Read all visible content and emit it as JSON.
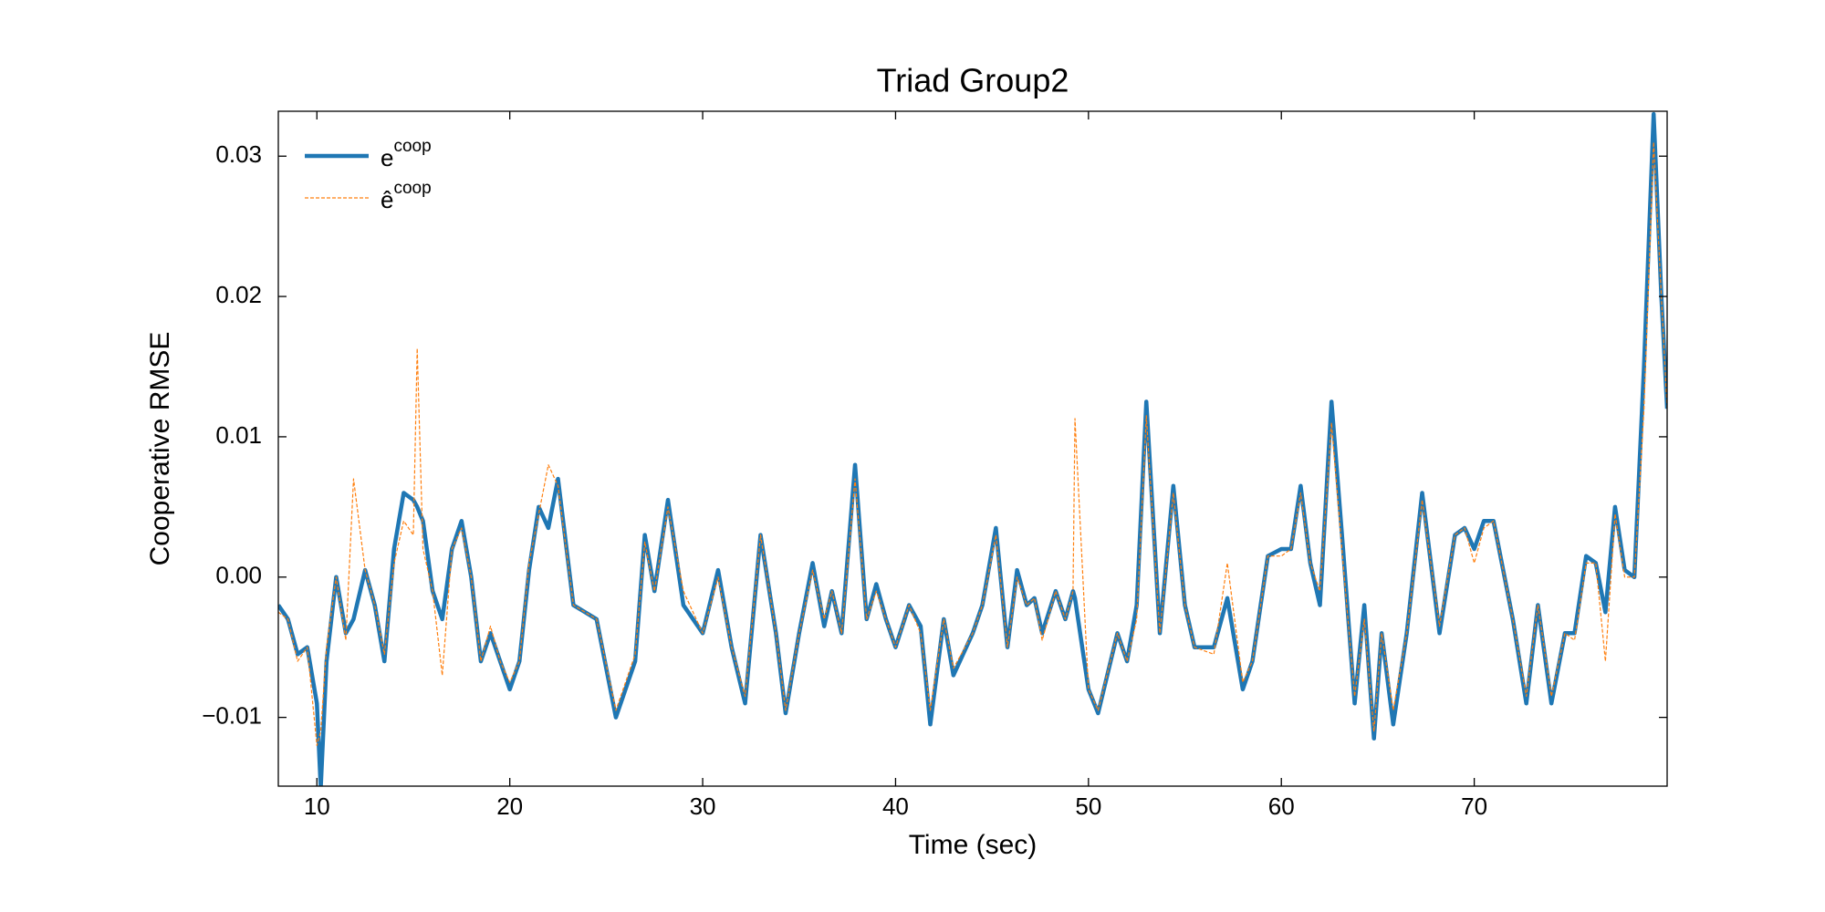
{
  "chart_data": {
    "type": "line",
    "title": "Triad Group2",
    "xlabel": "Time (sec)",
    "ylabel": "Cooperative RMSE",
    "x": [
      8,
      8.5,
      9,
      9.5,
      10,
      10.2,
      10.5,
      11,
      11.5,
      11.9,
      12.5,
      13,
      13.5,
      14,
      14.5,
      15,
      15.2,
      15.5,
      16,
      16.5,
      17,
      17.5,
      18,
      18.5,
      19,
      19.5,
      20,
      20.5,
      21,
      21.5,
      22,
      22.5,
      23.3,
      24.5,
      25.5,
      26.5,
      27,
      27.5,
      28.2,
      29,
      30,
      30.8,
      31.5,
      32.2,
      33,
      33.8,
      34.3,
      35,
      35.7,
      36.3,
      36.7,
      37.2,
      37.9,
      38.5,
      39,
      39.5,
      40,
      40.7,
      41.3,
      41.8,
      42.5,
      43,
      44,
      44.5,
      45.2,
      45.8,
      46.3,
      46.8,
      47.2,
      47.6,
      48.3,
      48.8,
      49.2,
      49.3,
      50,
      50.5,
      51.5,
      52,
      52.5,
      53,
      53.7,
      54.4,
      55,
      55.5,
      56.5,
      57.2,
      58,
      58.5,
      59.3,
      60,
      60.5,
      61,
      61.5,
      62,
      62.6,
      63.2,
      63.8,
      64.3,
      64.8,
      65.2,
      65.8,
      66.5,
      67.3,
      68.2,
      69,
      69.5,
      70,
      70.5,
      71,
      72,
      72.7,
      73.3,
      74,
      74.7,
      75.2,
      75.8,
      76.3,
      76.8,
      77.3,
      77.8,
      78.3,
      78.8,
      79.3,
      79.7,
      80
    ],
    "series": [
      {
        "name": "ecoop",
        "color": "#1f77b4",
        "values": [
          -0.002,
          -0.003,
          -0.0055,
          -0.005,
          -0.009,
          -0.015,
          -0.006,
          0.0,
          -0.004,
          -0.003,
          0.0005,
          -0.002,
          -0.006,
          0.002,
          0.006,
          0.0055,
          0.005,
          0.004,
          -0.001,
          -0.003,
          0.002,
          0.004,
          0.0,
          -0.006,
          -0.004,
          -0.006,
          -0.008,
          -0.006,
          0.0005,
          0.005,
          0.0035,
          0.007,
          -0.002,
          -0.003,
          -0.01,
          -0.006,
          0.003,
          -0.001,
          0.0055,
          -0.002,
          -0.004,
          0.0005,
          -0.005,
          -0.009,
          0.003,
          -0.004,
          -0.0097,
          -0.004,
          0.001,
          -0.0035,
          -0.001,
          -0.004,
          0.008,
          -0.003,
          -0.0005,
          -0.003,
          -0.005,
          -0.002,
          -0.0035,
          -0.0105,
          -0.003,
          -0.007,
          -0.004,
          -0.002,
          0.0035,
          -0.005,
          0.0005,
          -0.002,
          -0.0015,
          -0.004,
          -0.001,
          -0.003,
          -0.001,
          -0.0015,
          -0.008,
          -0.0097,
          -0.004,
          -0.006,
          -0.002,
          0.0125,
          -0.004,
          0.0065,
          -0.002,
          -0.005,
          -0.005,
          -0.0015,
          -0.008,
          -0.006,
          0.0015,
          0.002,
          0.002,
          0.0065,
          0.001,
          -0.002,
          0.0125,
          0.002,
          -0.009,
          -0.002,
          -0.0115,
          -0.004,
          -0.0105,
          -0.004,
          0.006,
          -0.004,
          0.003,
          0.0035,
          0.002,
          0.004,
          0.004,
          -0.003,
          -0.009,
          -0.002,
          -0.009,
          -0.004,
          -0.004,
          0.0015,
          0.001,
          -0.0025,
          0.005,
          0.0005,
          0.0,
          0.015,
          0.033,
          0.02,
          0.012
        ]
      },
      {
        "name": "êcoop",
        "color": "#ff7f0e",
        "values": [
          -0.0025,
          -0.003,
          -0.006,
          -0.005,
          -0.012,
          -0.011,
          -0.005,
          0.0,
          -0.0045,
          0.007,
          0.0005,
          -0.002,
          -0.0055,
          0.001,
          0.004,
          0.003,
          0.0163,
          0.002,
          -0.001,
          -0.007,
          0.002,
          0.0035,
          0.0,
          -0.006,
          -0.0035,
          -0.006,
          -0.0075,
          -0.006,
          0.001,
          0.0045,
          0.008,
          0.0065,
          -0.002,
          -0.003,
          -0.0095,
          -0.0055,
          0.0025,
          -0.001,
          0.005,
          -0.001,
          -0.004,
          0.0,
          -0.005,
          -0.0085,
          0.003,
          -0.004,
          -0.0095,
          -0.004,
          0.0005,
          -0.003,
          -0.001,
          -0.004,
          0.007,
          -0.003,
          -0.001,
          -0.003,
          -0.005,
          -0.002,
          -0.004,
          -0.0095,
          -0.003,
          -0.0065,
          -0.004,
          -0.002,
          0.003,
          -0.005,
          0.0,
          -0.002,
          -0.0015,
          -0.0045,
          -0.001,
          -0.003,
          -0.001,
          0.0113,
          -0.008,
          -0.0095,
          -0.004,
          -0.006,
          -0.003,
          0.0115,
          -0.004,
          0.006,
          -0.002,
          -0.005,
          -0.0055,
          0.001,
          -0.0075,
          -0.006,
          0.0015,
          0.0015,
          0.002,
          0.006,
          0.001,
          -0.001,
          0.011,
          0.001,
          -0.0085,
          -0.003,
          -0.011,
          -0.004,
          -0.0095,
          -0.004,
          0.0055,
          -0.0035,
          0.003,
          0.0035,
          0.001,
          0.0035,
          0.004,
          -0.003,
          -0.0085,
          -0.002,
          -0.0085,
          -0.004,
          -0.0045,
          0.001,
          0.001,
          -0.006,
          0.0045,
          0.0,
          0.0,
          0.012,
          0.031,
          0.02,
          0.012
        ]
      }
    ],
    "xlim": [
      8,
      80
    ],
    "ylim": [
      -0.0149,
      0.0332
    ],
    "xticks": [
      10,
      20,
      30,
      40,
      50,
      60,
      70
    ],
    "yticks": [
      {
        "value": -0.01,
        "label": "−0.01"
      },
      {
        "value": 0,
        "label": "0.00"
      },
      0.01,
      0.02,
      0.03
    ],
    "grid": false,
    "legend": "upper left"
  }
}
